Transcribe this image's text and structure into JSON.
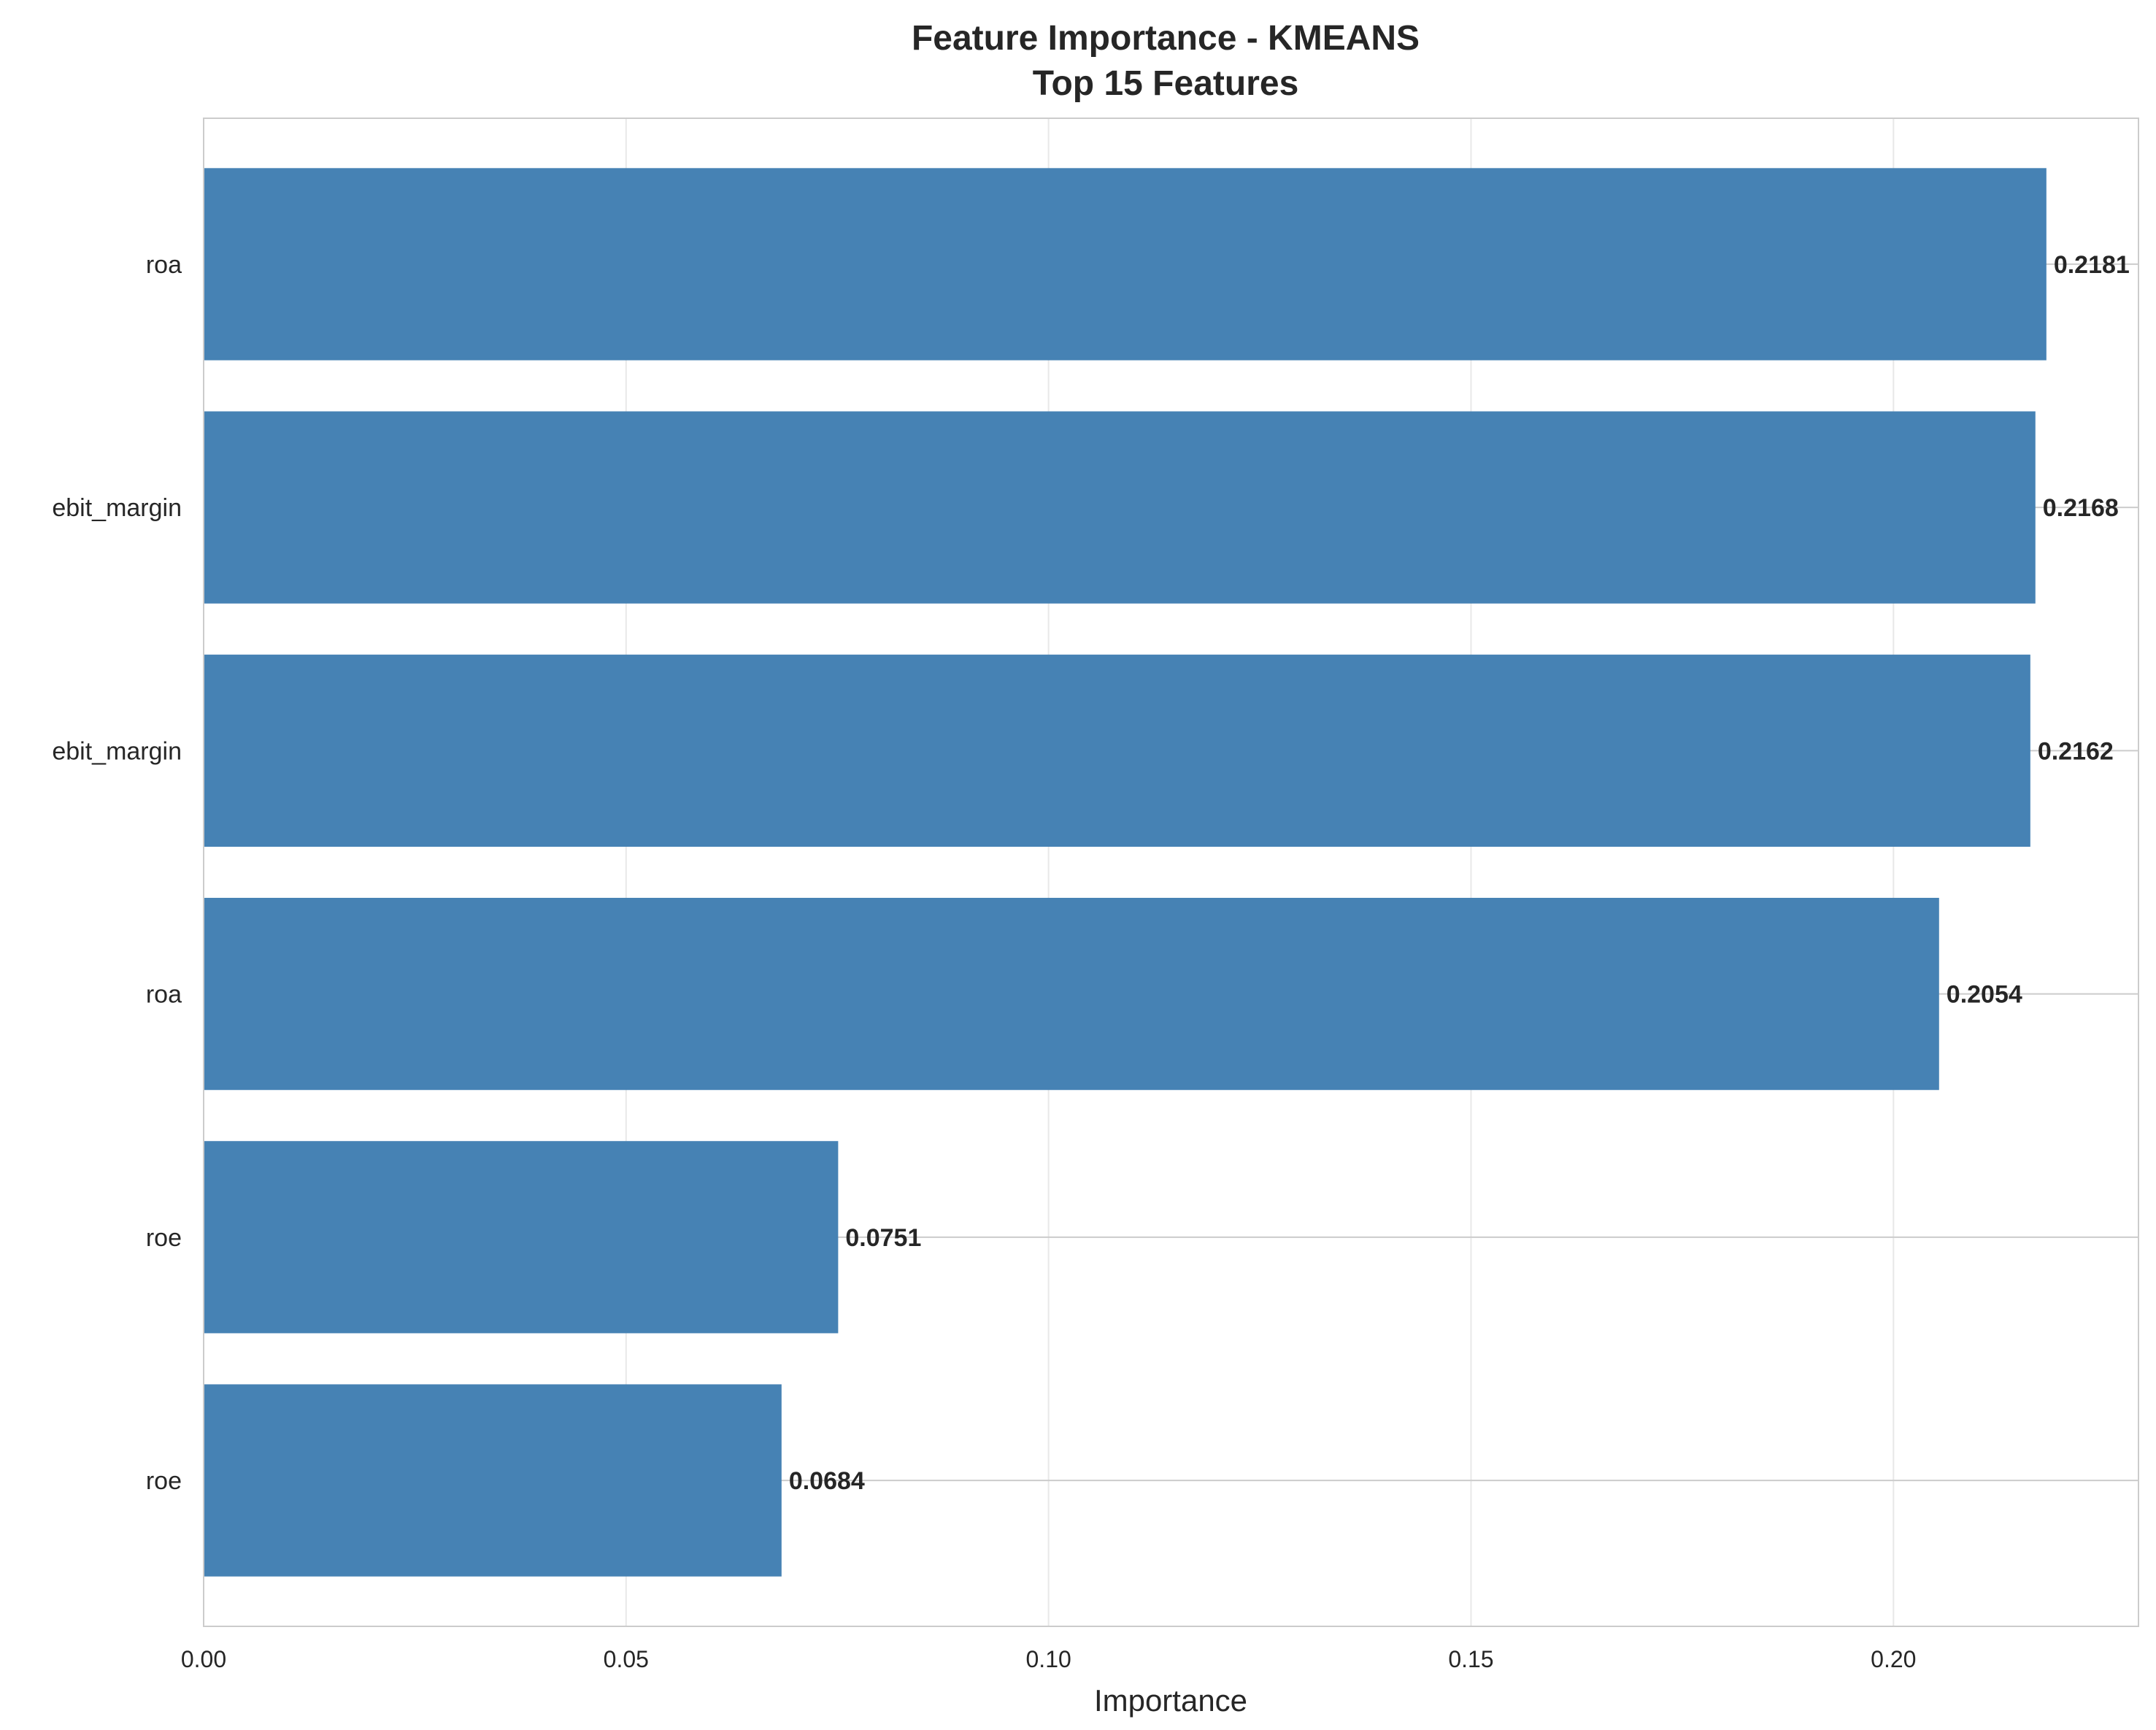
{
  "chart_data": {
    "type": "bar",
    "orientation": "horizontal",
    "title": "Feature Importance - KMEANS",
    "subtitle": "Top 15 Features",
    "xlabel": "Importance",
    "ylabel": "",
    "categories": [
      "roa",
      "ebit_margin",
      "ebit_margin",
      "roa",
      "roe",
      "roe"
    ],
    "values": [
      0.2181,
      0.2168,
      0.2162,
      0.2054,
      0.0751,
      0.0684
    ],
    "value_labels": [
      "0.2181",
      "0.2168",
      "0.2162",
      "0.2054",
      "0.0751",
      "0.0684"
    ],
    "xlim": [
      0,
      0.229
    ],
    "xticks": [
      0.0,
      0.05,
      0.1,
      0.15,
      0.2
    ],
    "xtick_labels": [
      "0.00",
      "0.05",
      "0.10",
      "0.15",
      "0.20"
    ],
    "grid": true,
    "bar_color": "#4682b4"
  }
}
